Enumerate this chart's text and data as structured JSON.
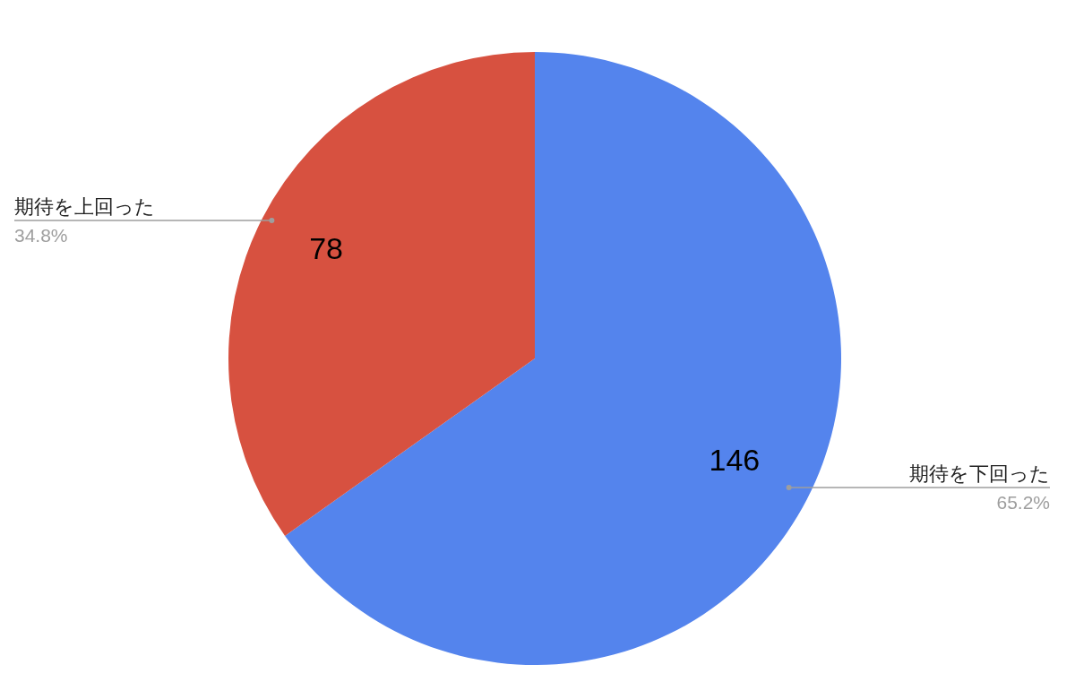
{
  "chart_data": {
    "type": "pie",
    "categories": [
      "期待を下回った",
      "期待を上回った"
    ],
    "values": [
      146,
      78
    ],
    "colors": [
      "#5484ed",
      "#d75140"
    ],
    "value_labels": [
      "146",
      "78"
    ],
    "annotations": [
      {
        "text": "65.2%",
        "x": "期待を下回った"
      },
      {
        "text": "34.8%",
        "x": "期待を上回った"
      }
    ]
  }
}
